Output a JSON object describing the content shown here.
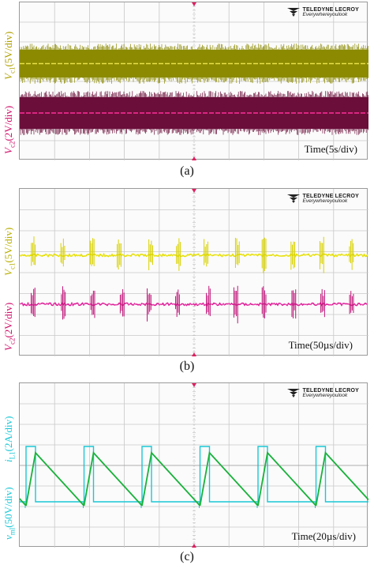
{
  "brand": {
    "name": "TELEDYNE LECROY",
    "tagline": "Everywhereyoulook"
  },
  "panels": [
    {
      "caption": "(a)",
      "time_label": "Time(5s/div)",
      "channels": [
        {
          "label_main": "V",
          "label_sub": "c1",
          "label_unit": "(5V/div)",
          "color": "#8b8a00",
          "line_color": "#e8e04a"
        },
        {
          "label_main": "V",
          "label_sub": "c2",
          "label_unit": "(2V/div)",
          "color": "#6b0f3a",
          "line_color": "#ff2f9a"
        }
      ]
    },
    {
      "caption": "(b)",
      "time_label": "Time(50µs/div)",
      "channels": [
        {
          "label_main": "V",
          "label_sub": "c1",
          "label_unit": "(5V/div)",
          "color": "#d8d200",
          "line_color": "#e6e000"
        },
        {
          "label_main": "V",
          "label_sub": "c2",
          "label_unit": "(2V/div)",
          "color": "#c0147a",
          "line_color": "#e0209a"
        }
      ]
    },
    {
      "caption": "(c)",
      "time_label": "Time(20µs/div)",
      "channels": [
        {
          "label_main": "i",
          "label_sub": "L1",
          "label_unit": "(2A/div)",
          "color": "#18b23a",
          "line_color": "#20c040"
        },
        {
          "label_main": "v",
          "label_sub": "ml",
          "label_unit": "(50V/div)",
          "color": "#19c7d6",
          "line_color": "#19c7d6"
        }
      ]
    }
  ],
  "colors": {
    "grid": "#c8c8c8",
    "frame": "#9a9a9a",
    "marker": "#e02060"
  }
}
